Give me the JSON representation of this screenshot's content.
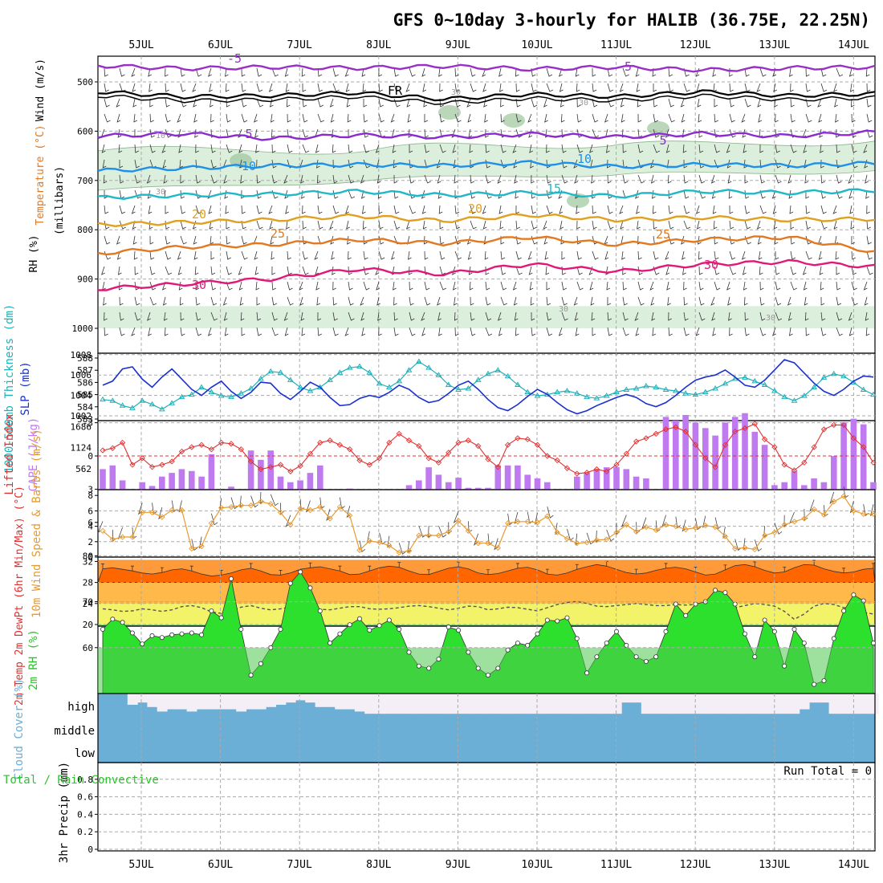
{
  "title": "GFS 0~10day 3-hourly for HALIB (36.75E, 22.25N)",
  "dates": [
    "5JUL",
    "6JUL",
    "7JUL",
    "8JUL",
    "9JUL",
    "10JUL",
    "11JUL",
    "12JUL",
    "13JUL",
    "14JUL"
  ],
  "colors": {
    "rh_fill": "#dcefdc",
    "rh_dark": "#9cc69c",
    "temp_minus5": "#9a2fc8",
    "temp_5": "#8a2bd0",
    "temp_10": "#1e90e8",
    "temp_15": "#1fb8c8",
    "temp_20": "#e0a020",
    "temp_25": "#e27820",
    "temp_30": "#e0187a",
    "freezing": "#000000",
    "thickness": "#20b0b8",
    "slp": "#1a30d0",
    "lifted": "#e03030",
    "cape": "#c07af0",
    "wind10": "#e89a30",
    "temp2m": "#ff6600",
    "rh2m": "#2ee02e",
    "cloud": "#6baed6",
    "grid": "#aaaaaa"
  },
  "chart_data": [
    {
      "type": "contour",
      "name": "upper-air",
      "ylabel_parts": [
        "RH (%)",
        "Temperature (°C)",
        "Wind (m/s)"
      ],
      "ylabel_unit": "(millibars)",
      "yticks": [
        500,
        600,
        700,
        800,
        900,
        1000
      ],
      "ylim": [
        450,
        1000
      ],
      "series": [
        {
          "name": "-5",
          "pressure": [
            467,
            473,
            470,
            472,
            468,
            474,
            470,
            476,
            472,
            470
          ]
        },
        {
          "name": "FR",
          "pressure": [
            520,
            530,
            528,
            522,
            535,
            525,
            530,
            520,
            528,
            524
          ]
        },
        {
          "name": "5",
          "pressure": [
            610,
            605,
            615,
            608,
            612,
            606,
            612,
            605,
            610,
            602
          ]
        },
        {
          "name": "10",
          "pressure": [
            680,
            675,
            670,
            668,
            670,
            664,
            672,
            668,
            670,
            665
          ]
        },
        {
          "name": "15",
          "pressure": [
            735,
            730,
            728,
            722,
            730,
            725,
            732,
            722,
            725,
            720
          ]
        },
        {
          "name": "20",
          "pressure": [
            790,
            785,
            780,
            772,
            782,
            770,
            780,
            775,
            780,
            778
          ]
        },
        {
          "name": "25",
          "pressure": [
            848,
            835,
            830,
            820,
            828,
            815,
            830,
            820,
            815,
            845
          ]
        },
        {
          "name": "30",
          "pressure": [
            920,
            910,
            900,
            880,
            890,
            870,
            885,
            870,
            865,
            875
          ]
        }
      ],
      "labels": [
        "-5",
        "-5",
        "FR",
        "5",
        "5",
        "10",
        "10",
        "15",
        "20",
        "20",
        "25",
        "25",
        "30",
        "30",
        "10",
        "30",
        "30",
        "30",
        "30",
        "30"
      ]
    },
    {
      "type": "line",
      "name": "thickness-slp",
      "ylabel_left": "1000-500mb Thickness (dm)",
      "ylabel_right": "SLP (mb)",
      "yticks_left": [
        583,
        584,
        585,
        586,
        587,
        588
      ],
      "yticks_right": [
        1002,
        1004,
        1006,
        1008
      ],
      "x": [
        0,
        0.125,
        0.25,
        0.375,
        0.5,
        0.625,
        0.75,
        0.875,
        1,
        1.125,
        1.25,
        1.375,
        1.5,
        1.625,
        1.75,
        1.875,
        2,
        2.125,
        2.25,
        2.375,
        2.5,
        2.625,
        2.75,
        2.875,
        3,
        3.125,
        3.25,
        3.375,
        3.5,
        3.625,
        3.75,
        3.875,
        4,
        4.125,
        4.25,
        4.375,
        4.5,
        4.625,
        4.75,
        4.875,
        5,
        5.125,
        5.25,
        5.375,
        5.5,
        5.625,
        5.75,
        5.875,
        6,
        6.125,
        6.25,
        6.375,
        6.5,
        6.625,
        6.75,
        6.875,
        7,
        7.125,
        7.25,
        7.375,
        7.5,
        7.625,
        7.75,
        7.875,
        8,
        8.125,
        8.25,
        8.375,
        8.5,
        8.625,
        8.75,
        8.875,
        9,
        9.125,
        9.25,
        9.375,
        9.5,
        9.625,
        9.75
      ],
      "series": [
        {
          "name": "Thickness",
          "axis": "left",
          "values": [
            584.6,
            584.5,
            584.1,
            583.9,
            584.5,
            584.2,
            583.8,
            584.3,
            584.8,
            585.0,
            585.6,
            585.2,
            584.9,
            584.8,
            585.1,
            585.5,
            586.3,
            586.9,
            586.8,
            586.2,
            585.6,
            585.3,
            585.6,
            586.2,
            586.8,
            587.2,
            587.3,
            586.8,
            585.9,
            585.6,
            586.1,
            587.0,
            587.7,
            587.2,
            586.6,
            585.8,
            585.4,
            585.5,
            586.2,
            586.7,
            587.0,
            586.5,
            585.8,
            585.2,
            584.9,
            585.0,
            585.2,
            585.3,
            585.1,
            584.8,
            584.7,
            584.9,
            585.2,
            585.4,
            585.5,
            585.7,
            585.6,
            585.4,
            585.3,
            585.1,
            585.0,
            585.2,
            585.5,
            585.9,
            586.3,
            586.4,
            586.1,
            585.8,
            585.3,
            584.8,
            584.5,
            584.9,
            585.6,
            586.4,
            586.7,
            586.5,
            586.0,
            585.4,
            585.0
          ]
        },
        {
          "name": "SLP",
          "axis": "right",
          "values": [
            1005.0,
            1005.4,
            1006.6,
            1006.8,
            1005.6,
            1004.8,
            1005.8,
            1006.6,
            1005.6,
            1004.6,
            1004.0,
            1004.8,
            1005.4,
            1004.4,
            1003.7,
            1004.3,
            1005.3,
            1005.2,
            1004.2,
            1003.6,
            1004.4,
            1005.3,
            1004.8,
            1003.8,
            1003.0,
            1003.1,
            1003.7,
            1004.0,
            1003.8,
            1004.3,
            1005.0,
            1004.6,
            1003.8,
            1003.3,
            1003.5,
            1004.2,
            1005.0,
            1005.4,
            1004.6,
            1003.6,
            1002.8,
            1002.5,
            1003.1,
            1003.9,
            1004.6,
            1004.1,
            1003.3,
            1002.6,
            1002.2,
            1002.5,
            1003.0,
            1003.4,
            1003.8,
            1004.1,
            1003.8,
            1003.2,
            1002.9,
            1003.3,
            1004.0,
            1004.8,
            1005.5,
            1005.8,
            1006.0,
            1006.5,
            1005.8,
            1005.0,
            1004.8,
            1005.5,
            1006.5,
            1007.5,
            1007.2,
            1006.2,
            1005.2,
            1004.4,
            1004.0,
            1004.6,
            1005.4,
            1005.9,
            1005.8
          ]
        }
      ]
    },
    {
      "type": "bar+line",
      "name": "lifted-cape",
      "ylabel_left": "Lifted Index",
      "ylabel_right": "CAPE (J/kg)",
      "yticks_left": [
        -3,
        0,
        3,
        6
      ],
      "yticks_right": [
        562,
        1124,
        1686
      ],
      "series": [
        {
          "name": "Lifted Index",
          "values": [
            -0.5,
            -0.7,
            -1.2,
            0.8,
            0.2,
            1.0,
            0.8,
            0.5,
            -0.4,
            -0.8,
            -1.0,
            -0.6,
            -1.2,
            -1.1,
            -0.6,
            0.5,
            1.2,
            1.0,
            0.8,
            1.4,
            0.9,
            -0.2,
            -1.2,
            -1.4,
            -1.0,
            -0.6,
            0.4,
            0.8,
            0.2,
            -1.2,
            -2.0,
            -1.4,
            -0.9,
            0.2,
            0.6,
            -0.3,
            -1.2,
            -1.4,
            -0.9,
            0.3,
            1.0,
            -1.0,
            -1.6,
            -1.5,
            -1.0,
            0.0,
            0.4,
            1.1,
            1.6,
            1.5,
            1.2,
            1.4,
            0.8,
            -0.2,
            -1.3,
            -1.6,
            -2.0,
            -2.4,
            -2.6,
            -2.2,
            -1.0,
            0.2,
            1.0,
            -1.0,
            -2.2,
            -2.5,
            -2.9,
            -1.5,
            -0.8,
            0.8,
            1.3,
            0.6,
            -0.8,
            -2.4,
            -2.8,
            -2.8,
            -1.6,
            -0.8,
            0.6
          ]
        },
        {
          "name": "CAPE",
          "values": [
            550,
            650,
            250,
            20,
            200,
            100,
            350,
            450,
            550,
            500,
            350,
            950,
            20,
            80,
            20,
            1050,
            800,
            1050,
            350,
            200,
            250,
            450,
            650,
            20,
            20,
            30,
            20,
            20,
            20,
            20,
            20,
            120,
            250,
            600,
            400,
            200,
            320,
            50,
            50,
            50,
            650,
            650,
            650,
            400,
            300,
            200,
            20,
            20,
            350,
            450,
            550,
            600,
            600,
            550,
            350,
            300,
            20,
            1950,
            1850,
            2000,
            1800,
            1650,
            1450,
            1800,
            1950,
            2050,
            1550,
            1200,
            120,
            200,
            500,
            120,
            300,
            200,
            900,
            1800,
            1900,
            1750,
            200
          ]
        }
      ]
    },
    {
      "type": "line",
      "name": "wind10m",
      "ylabel": "10m Wind Speed & Barbs (m/s)",
      "yticks": [
        0,
        2,
        4,
        6,
        8
      ],
      "series": [
        {
          "name": "Speed",
          "values": [
            3.4,
            2.3,
            2.6,
            2.6,
            5.8,
            5.8,
            5.2,
            6.1,
            6.1,
            1.1,
            1.4,
            4.4,
            6.4,
            6.5,
            6.7,
            6.7,
            7.2,
            6.9,
            5.8,
            4.2,
            6.3,
            6.1,
            6.5,
            5.0,
            6.5,
            5.4,
            0.9,
            2.1,
            1.9,
            1.5,
            0.6,
            0.8,
            2.8,
            2.8,
            2.8,
            3.3,
            4.7,
            3.4,
            1.8,
            1.8,
            1.2,
            4.4,
            4.6,
            4.6,
            4.5,
            5.3,
            3.2,
            2.4,
            1.8,
            1.9,
            2.2,
            2.3,
            3.2,
            4.2,
            3.3,
            3.9,
            3.5,
            4.2,
            4.0,
            3.6,
            3.8,
            4.1,
            3.9,
            2.7,
            1.1,
            1.2,
            1.0,
            2.8,
            3.2,
            4.2,
            4.6,
            5.0,
            6.2,
            5.5,
            7.2,
            7.9,
            6.0,
            5.6,
            5.6
          ]
        }
      ]
    },
    {
      "type": "area",
      "name": "temp2m",
      "ylabel": "2m Temp 2m DewPt (6hr Min/Max) (°C)",
      "yticks": [
        20,
        24,
        28,
        32
      ],
      "series": [
        {
          "name": "2m Temp",
          "values": [
            30.6,
            30.8,
            30.5,
            30.2,
            29.8,
            29.6,
            29.9,
            30.4,
            30.6,
            30.2,
            29.6,
            29.2,
            29.4,
            29.8,
            30.4,
            30.7,
            30.2,
            29.5,
            29.4,
            29.8,
            30.5,
            30.8,
            31.0,
            30.6,
            30.2,
            29.5,
            29.6,
            30.2,
            30.8,
            31.1,
            30.9,
            30.2,
            29.6,
            29.5,
            30.1,
            30.7,
            31.0,
            30.6,
            29.8,
            29.5,
            29.7,
            30.2,
            30.7,
            30.9,
            30.4,
            29.6,
            29.4,
            29.8,
            30.5,
            31.0,
            31.4,
            31.1,
            30.5,
            29.9,
            29.6,
            29.8,
            30.3,
            30.7,
            30.9,
            30.6,
            30.0,
            29.4,
            29.6,
            30.4,
            31.2,
            31.4,
            31.0,
            30.3,
            29.8,
            30.0,
            30.8,
            31.4,
            31.3,
            30.6,
            30.1,
            29.8,
            30.0,
            30.5,
            30.7
          ]
        },
        {
          "name": "2m DewPt",
          "values": [
            23.0,
            22.8,
            22.5,
            22.6,
            23.0,
            22.8,
            22.5,
            22.8,
            23.4,
            23.6,
            23.2,
            22.4,
            22.1,
            22.6,
            23.3,
            23.6,
            23.1,
            22.8,
            23.0,
            23.3,
            23.4,
            23.2,
            22.9,
            22.8,
            23.1,
            23.4,
            23.4,
            23.0,
            22.9,
            23.0,
            23.2,
            23.5,
            23.6,
            23.4,
            23.1,
            22.8,
            23.1,
            23.5,
            23.4,
            22.8,
            23.0,
            23.3,
            23.2,
            22.9,
            22.6,
            23.2,
            23.8,
            24.2,
            24.4,
            24.0,
            23.5,
            23.4,
            23.6,
            23.8,
            24.0,
            23.8,
            23.6,
            23.6,
            23.8,
            23.7,
            23.8,
            24.0,
            23.6,
            23.3,
            23.2,
            23.6,
            24.0,
            23.8,
            23.5,
            22.5,
            21.0,
            22.0,
            23.5,
            24.0,
            23.8,
            23.2,
            23.0,
            22.3,
            22.0
          ]
        }
      ]
    },
    {
      "type": "area",
      "name": "rh2m",
      "ylabel": "2m RH (%)",
      "yticks": [
        60,
        70,
        80
      ],
      "series": [
        {
          "name": "2m RH",
          "values": [
            64.0,
            66.2,
            65.5,
            63.2,
            60.8,
            62.6,
            62.2,
            62.8,
            63.0,
            63.2,
            62.8,
            68.0,
            66.5,
            75.0,
            64.0,
            54.0,
            56.5,
            60.0,
            64.0,
            74.0,
            76.5,
            73.0,
            68.0,
            61.0,
            63.0,
            65.0,
            66.3,
            63.8,
            64.8,
            66.0,
            64.0,
            59.0,
            56.0,
            55.5,
            57.5,
            64.5,
            63.8,
            59.0,
            55.5,
            54.0,
            55.5,
            59.5,
            61.0,
            60.5,
            63.0,
            66.0,
            65.8,
            66.5,
            62.0,
            54.5,
            58.0,
            61.0,
            63.5,
            60.5,
            58.0,
            57.0,
            58.0,
            63.5,
            69.5,
            67.0,
            69.5,
            70.0,
            72.5,
            72.0,
            69.5,
            63.0,
            58.0,
            66.0,
            63.5,
            56.0,
            64.0,
            61.0,
            52.0,
            52.8,
            62.0,
            68.0,
            71.5,
            70.2,
            61.0
          ]
        }
      ]
    },
    {
      "type": "heatmap",
      "name": "cloud",
      "ylabel": "Cloud Cover (%)",
      "levels": [
        "high",
        "middle",
        "low"
      ],
      "series": [
        {
          "name": "high",
          "values": [
            1,
            1,
            1,
            0.5,
            0.6,
            0.4,
            0.2,
            0.3,
            0.3,
            0.2,
            0.3,
            0.3,
            0.3,
            0.3,
            0.2,
            0.3,
            0.3,
            0.4,
            0.5,
            0.6,
            0.7,
            0.6,
            0.4,
            0.4,
            0.3,
            0.3,
            0.2,
            0.1,
            0.1,
            0.1,
            0.1,
            0.1,
            0.1,
            0.1,
            0.1,
            0.1,
            0.1,
            0.1,
            0.1,
            0.1,
            0.1,
            0.1,
            0.1,
            0.1,
            0.1,
            0.1,
            0.1,
            0.1,
            0.1,
            0.1,
            0.1,
            0.1,
            0.1,
            0.6,
            0.6,
            0.1,
            0.1,
            0.1,
            0.1,
            0.1,
            0.1,
            0.1,
            0.1,
            0.1,
            0.1,
            0.1,
            0.1,
            0.1,
            0.1,
            0.1,
            0.1,
            0.3,
            0.6,
            0.6,
            0.1,
            0.1,
            0.1,
            0.1,
            0.1
          ]
        }
      ]
    },
    {
      "type": "line",
      "name": "precip",
      "ylabel_left": "Total / Rain Convective",
      "ylabel": "3hr Precip (mm)",
      "yticks": [
        0,
        0.2,
        0.4,
        0.6,
        0.8
      ],
      "run_total": "Run Total = 0",
      "series": [
        {
          "name": "Total",
          "values": []
        }
      ]
    }
  ]
}
